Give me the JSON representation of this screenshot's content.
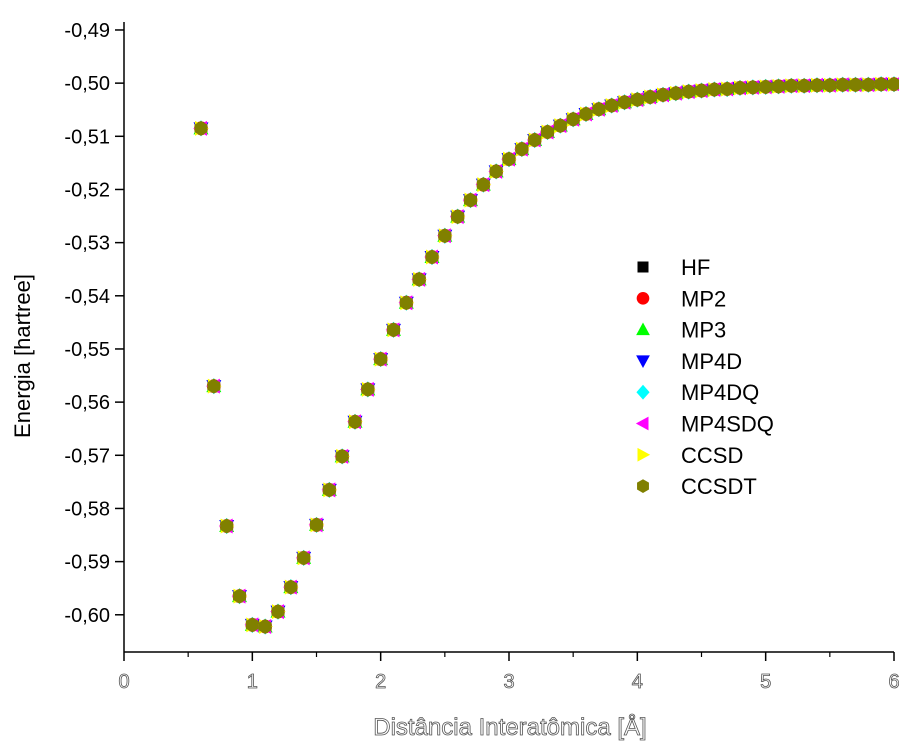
{
  "chart_data": {
    "type": "scatter",
    "title": "",
    "xlabel": "Distância Interatômica [Å]",
    "ylabel": "Energia [hartree]",
    "xlim": [
      0,
      6
    ],
    "ylim": [
      -0.607,
      -0.4885
    ],
    "x_ticks": [
      "0",
      "1",
      "2",
      "3",
      "4",
      "5",
      "6"
    ],
    "y_ticks": [
      "-0,49",
      "-0,50",
      "-0,51",
      "-0,52",
      "-0,53",
      "-0,54",
      "-0,55",
      "-0,56",
      "-0,57",
      "-0,58",
      "-0,59",
      "-0,60"
    ],
    "legend_position": "center-right",
    "grid": false,
    "x": [
      0.6,
      0.7,
      0.8,
      0.9,
      1.0,
      1.1,
      1.2,
      1.3,
      1.4,
      1.5,
      1.6,
      1.7,
      1.8,
      1.9,
      2.0,
      2.1,
      2.2,
      2.3,
      2.4,
      2.5,
      2.6,
      2.7,
      2.8,
      2.9,
      3.0,
      3.1,
      3.2,
      3.3,
      3.4,
      3.5,
      3.6,
      3.7,
      3.8,
      3.9,
      4.0,
      4.1,
      4.2,
      4.3,
      4.4,
      4.5,
      4.6,
      4.7,
      4.8,
      4.9,
      5.0,
      5.1,
      5.2,
      5.3,
      5.4,
      5.5,
      5.6,
      5.7,
      5.8,
      5.9,
      6.0
    ],
    "y": [
      -0.5085,
      -0.557,
      -0.5833,
      -0.5965,
      -0.6019,
      -0.6022,
      -0.5994,
      -0.5948,
      -0.5893,
      -0.5831,
      -0.5765,
      -0.5702,
      -0.5637,
      -0.5576,
      -0.5519,
      -0.5464,
      -0.5413,
      -0.5369,
      -0.5327,
      -0.5287,
      -0.5251,
      -0.522,
      -0.5191,
      -0.5166,
      -0.5143,
      -0.5124,
      -0.5107,
      -0.5092,
      -0.508,
      -0.5068,
      -0.5058,
      -0.5049,
      -0.5042,
      -0.5036,
      -0.5031,
      -0.5026,
      -0.5022,
      -0.5019,
      -0.5016,
      -0.5014,
      -0.5012,
      -0.5011,
      -0.5009,
      -0.5008,
      -0.5007,
      -0.5006,
      -0.5005,
      -0.5005,
      -0.5004,
      -0.5004,
      -0.5003,
      -0.5003,
      -0.5003,
      -0.5002,
      -0.5002
    ],
    "series": [
      {
        "name": "HF",
        "marker": "square",
        "color": "#000000"
      },
      {
        "name": "MP2",
        "marker": "circle",
        "color": "#ff0000"
      },
      {
        "name": "MP3",
        "marker": "triangle-up",
        "color": "#00ff00"
      },
      {
        "name": "MP4D",
        "marker": "triangle-down",
        "color": "#0000ff"
      },
      {
        "name": "MP4DQ",
        "marker": "diamond",
        "color": "#00ffff"
      },
      {
        "name": "MP4SDQ",
        "marker": "triangle-left",
        "color": "#ff00ff"
      },
      {
        "name": "CCSD",
        "marker": "triangle-right",
        "color": "#ffff00"
      },
      {
        "name": "CCSDT",
        "marker": "hexagon",
        "color": "#808000"
      }
    ],
    "series_note_values_identical": true
  }
}
